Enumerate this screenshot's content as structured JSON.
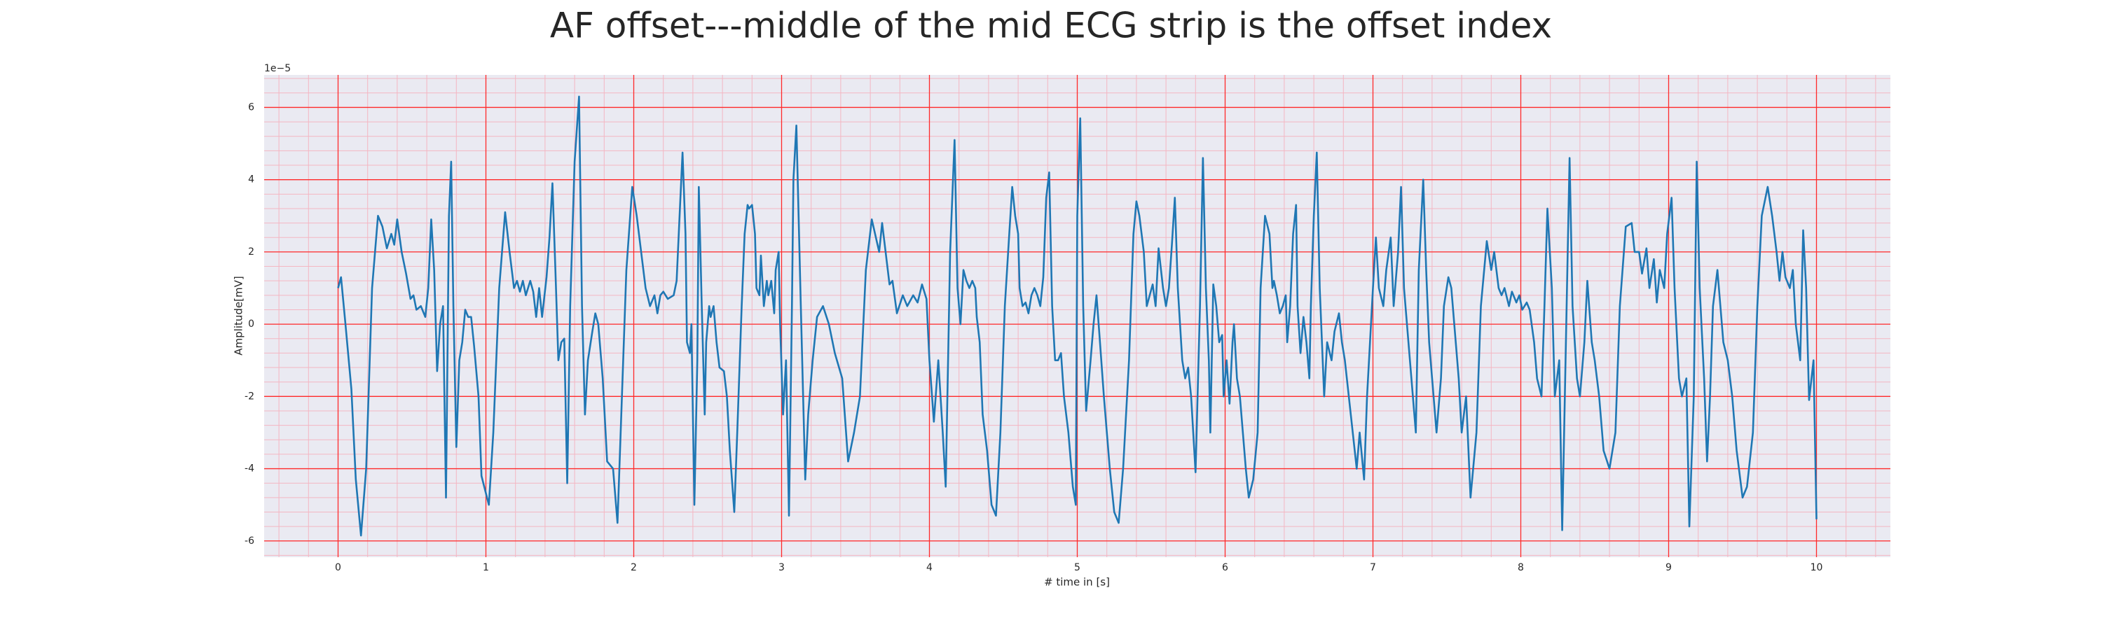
{
  "chart_data": {
    "type": "line",
    "title": "AF offset---middle of the mid ECG strip is the offset index",
    "x_label": "# time in [s]",
    "y_label": "Amplitude[mV]",
    "y_offset_label": "1e−5",
    "color": "#1f77b4",
    "grid": true,
    "minor_grid": {
      "x": 0.2,
      "y": 0.4
    },
    "xlim": [
      -0.5,
      10.5
    ],
    "ylim": [
      -6.45,
      6.9
    ],
    "xticks": [
      0,
      1,
      2,
      3,
      4,
      5,
      6,
      7,
      8,
      9,
      10
    ],
    "yticks": [
      -6,
      -4,
      -2,
      0,
      2,
      4,
      6
    ],
    "x": [
      0,
      0.02,
      0.05,
      0.09,
      0.12,
      0.155,
      0.19,
      0.23,
      0.27,
      0.3,
      0.33,
      0.36,
      0.38,
      0.4,
      0.43,
      0.46,
      0.49,
      0.51,
      0.53,
      0.56,
      0.59,
      0.61,
      0.63,
      0.65,
      0.67,
      0.69,
      0.71,
      0.73,
      0.75,
      0.765,
      0.78,
      0.8,
      0.82,
      0.84,
      0.86,
      0.88,
      0.9,
      0.92,
      0.95,
      0.97,
      1.02,
      1.05,
      1.09,
      1.13,
      1.16,
      1.19,
      1.21,
      1.23,
      1.25,
      1.27,
      1.3,
      1.32,
      1.34,
      1.36,
      1.38,
      1.41,
      1.43,
      1.45,
      1.47,
      1.49,
      1.51,
      1.53,
      1.55,
      1.57,
      1.6,
      1.63,
      1.65,
      1.67,
      1.69,
      1.72,
      1.74,
      1.76,
      1.79,
      1.82,
      1.86,
      1.89,
      1.92,
      1.95,
      1.99,
      2.02,
      2.05,
      2.08,
      2.11,
      2.14,
      2.16,
      2.18,
      2.2,
      2.23,
      2.27,
      2.29,
      2.31,
      2.33,
      2.35,
      2.36,
      2.38,
      2.39,
      2.41,
      2.43,
      2.44,
      2.46,
      2.48,
      2.49,
      2.51,
      2.52,
      2.54,
      2.56,
      2.58,
      2.61,
      2.63,
      2.65,
      2.68,
      2.7,
      2.73,
      2.75,
      2.77,
      2.78,
      2.8,
      2.82,
      2.83,
      2.85,
      2.86,
      2.88,
      2.9,
      2.91,
      2.93,
      2.95,
      2.96,
      2.98,
      2.99,
      3.01,
      3.03,
      3.05,
      3.07,
      3.08,
      3.1,
      3.13,
      3.16,
      3.18,
      3.21,
      3.24,
      3.28,
      3.32,
      3.36,
      3.41,
      3.45,
      3.49,
      3.53,
      3.57,
      3.61,
      3.66,
      3.68,
      3.73,
      3.75,
      3.78,
      3.82,
      3.85,
      3.89,
      3.92,
      3.95,
      3.98,
      4,
      4.03,
      4.06,
      4.09,
      4.11,
      4.14,
      4.17,
      4.19,
      4.21,
      4.23,
      4.25,
      4.27,
      4.29,
      4.31,
      4.32,
      4.34,
      4.36,
      4.39,
      4.42,
      4.45,
      4.48,
      4.51,
      4.54,
      4.56,
      4.58,
      4.6,
      4.61,
      4.63,
      4.65,
      4.67,
      4.69,
      4.71,
      4.73,
      4.75,
      4.77,
      4.79,
      4.81,
      4.83,
      4.85,
      4.87,
      4.89,
      4.91,
      4.94,
      4.97,
      4.99,
      5,
      5.02,
      5.04,
      5.06,
      5.09,
      5.11,
      5.13,
      5.15,
      5.18,
      5.22,
      5.25,
      5.28,
      5.31,
      5.35,
      5.38,
      5.4,
      5.42,
      5.45,
      5.47,
      5.49,
      5.51,
      5.53,
      5.55,
      5.58,
      5.6,
      5.62,
      5.64,
      5.66,
      5.68,
      5.71,
      5.73,
      5.75,
      5.77,
      5.8,
      5.83,
      5.85,
      5.87,
      5.89,
      5.9,
      5.92,
      5.94,
      5.96,
      5.98,
      5.99,
      6.01,
      6.03,
      6.05,
      6.06,
      6.08,
      6.1,
      6.12,
      6.14,
      6.16,
      6.19,
      6.22,
      6.24,
      6.27,
      6.3,
      6.32,
      6.33,
      6.35,
      6.37,
      6.39,
      6.41,
      6.42,
      6.44,
      6.46,
      6.48,
      6.49,
      6.51,
      6.53,
      6.55,
      6.57,
      6.58,
      6.6,
      6.62,
      6.64,
      6.67,
      6.69,
      6.72,
      6.74,
      6.77,
      6.79,
      6.81,
      6.85,
      6.89,
      6.91,
      6.94,
      6.96,
      7,
      7.02,
      7.04,
      7.07,
      7.09,
      7.12,
      7.14,
      7.17,
      7.19,
      7.21,
      7.24,
      7.26,
      7.29,
      7.31,
      7.34,
      7.36,
      7.38,
      7.41,
      7.43,
      7.46,
      7.48,
      7.51,
      7.53,
      7.55,
      7.58,
      7.6,
      7.63,
      7.66,
      7.7,
      7.73,
      7.77,
      7.8,
      7.82,
      7.85,
      7.87,
      7.89,
      7.92,
      7.94,
      7.97,
      7.99,
      8.01,
      8.04,
      8.06,
      8.09,
      8.11,
      8.14,
      8.16,
      8.18,
      8.21,
      8.23,
      8.26,
      8.28,
      8.31,
      8.33,
      8.35,
      8.38,
      8.4,
      8.43,
      8.45,
      8.48,
      8.5,
      8.53,
      8.56,
      8.6,
      8.64,
      8.67,
      8.71,
      8.75,
      8.77,
      8.8,
      8.82,
      8.85,
      8.87,
      8.9,
      8.92,
      8.94,
      8.97,
      8.99,
      9.02,
      9.04,
      9.07,
      9.09,
      9.12,
      9.14,
      9.17,
      9.19,
      9.21,
      9.24,
      9.26,
      9.28,
      9.3,
      9.33,
      9.35,
      9.37,
      9.4,
      9.43,
      9.46,
      9.5,
      9.53,
      9.57,
      9.6,
      9.63,
      9.67,
      9.7,
      9.73,
      9.75,
      9.77,
      9.79,
      9.82,
      9.84,
      9.86,
      9.89,
      9.91,
      9.93,
      9.95,
      9.98,
      10
    ],
    "values": [
      1.0,
      1.3,
      0.0,
      -1.8,
      -4.3,
      -5.85,
      -4.0,
      1.0,
      3.0,
      2.7,
      2.1,
      2.5,
      2.2,
      2.9,
      2.0,
      1.4,
      0.7,
      0.8,
      0.4,
      0.5,
      0.2,
      1.0,
      2.9,
      1.5,
      -1.3,
      0.0,
      0.5,
      -4.8,
      3.0,
      4.5,
      0.5,
      -3.4,
      -1.0,
      -0.5,
      0.4,
      0.2,
      0.2,
      -0.6,
      -2.0,
      -4.2,
      -5.0,
      -3.0,
      1.0,
      3.1,
      2.0,
      1.0,
      1.2,
      0.9,
      1.2,
      0.8,
      1.2,
      0.9,
      0.2,
      1.0,
      0.2,
      1.3,
      2.4,
      3.9,
      1.5,
      -1.0,
      -0.5,
      -0.4,
      -4.4,
      0.5,
      4.5,
      6.3,
      0.5,
      -2.5,
      -1.0,
      -0.2,
      0.3,
      0.0,
      -1.5,
      -3.8,
      -4.0,
      -5.5,
      -2.0,
      1.5,
      3.8,
      3.0,
      2.0,
      1.0,
      0.5,
      0.8,
      0.3,
      0.8,
      0.9,
      0.7,
      0.8,
      1.2,
      3.0,
      4.75,
      2.5,
      -0.5,
      -0.8,
      0.0,
      -5.0,
      -1.0,
      3.8,
      0.5,
      -2.5,
      -0.5,
      0.5,
      0.2,
      0.5,
      -0.5,
      -1.2,
      -1.3,
      -2.0,
      -3.5,
      -5.2,
      -3.0,
      0.5,
      2.5,
      3.3,
      3.2,
      3.3,
      2.5,
      1.0,
      0.8,
      1.9,
      0.5,
      1.2,
      0.8,
      1.2,
      0.3,
      1.5,
      2.0,
      0.0,
      -2.5,
      -1.0,
      -5.3,
      0.5,
      4.0,
      5.5,
      0.5,
      -4.3,
      -2.5,
      -1.0,
      0.2,
      0.5,
      0.0,
      -0.8,
      -1.5,
      -3.8,
      -3.0,
      -2.0,
      1.5,
      2.9,
      2.0,
      2.8,
      1.1,
      1.2,
      0.3,
      0.8,
      0.5,
      0.8,
      0.6,
      1.1,
      0.7,
      -1.0,
      -2.7,
      -1.0,
      -3.0,
      -4.5,
      2.0,
      5.1,
      1.0,
      0.0,
      1.5,
      1.2,
      1.0,
      1.2,
      1.0,
      0.2,
      -0.5,
      -2.5,
      -3.5,
      -5.0,
      -5.3,
      -3.0,
      0.5,
      2.5,
      3.8,
      3.0,
      2.5,
      1.0,
      0.5,
      0.6,
      0.3,
      0.8,
      1.0,
      0.8,
      0.5,
      1.3,
      3.5,
      4.2,
      0.5,
      -1.0,
      -1.0,
      -0.8,
      -2.0,
      -3.0,
      -4.5,
      -5.0,
      3.0,
      5.7,
      0.5,
      -2.4,
      -1.0,
      0.0,
      0.8,
      -0.3,
      -2.0,
      -4.0,
      -5.2,
      -5.5,
      -4.0,
      -1.0,
      2.5,
      3.4,
      3.0,
      2.0,
      0.5,
      0.8,
      1.1,
      0.5,
      2.1,
      1.0,
      0.5,
      1.0,
      2.2,
      3.5,
      1.0,
      -1.0,
      -1.5,
      -1.2,
      -2.0,
      -4.1,
      0.5,
      4.6,
      1.0,
      -1.0,
      -3.0,
      1.1,
      0.5,
      -0.5,
      -0.3,
      -2.0,
      -1.0,
      -2.2,
      -0.5,
      0.0,
      -1.5,
      -2.0,
      -3.0,
      -4.0,
      -4.8,
      -4.3,
      -3.0,
      1.0,
      3.0,
      2.5,
      1.0,
      1.2,
      0.8,
      0.3,
      0.5,
      0.8,
      -0.5,
      0.5,
      2.5,
      3.3,
      0.5,
      -0.8,
      0.2,
      -0.5,
      -1.5,
      0.5,
      3.0,
      4.75,
      1.0,
      -2.0,
      -0.5,
      -1.0,
      -0.2,
      0.3,
      -0.5,
      -1.0,
      -2.5,
      -4.0,
      -3.0,
      -4.3,
      -2.0,
      1.0,
      2.4,
      1.0,
      0.5,
      1.5,
      2.4,
      0.5,
      2.0,
      3.8,
      1.0,
      -0.5,
      -1.5,
      -3.0,
      1.5,
      4.0,
      1.5,
      -0.5,
      -2.0,
      -3.0,
      -1.5,
      0.5,
      1.3,
      1.0,
      0.0,
      -1.5,
      -3.0,
      -2.0,
      -4.8,
      -3.0,
      0.5,
      2.3,
      1.5,
      2.0,
      1.0,
      0.8,
      1.0,
      0.5,
      0.9,
      0.6,
      0.8,
      0.4,
      0.6,
      0.4,
      -0.5,
      -1.5,
      -2.0,
      0.5,
      3.2,
      1.0,
      -2.0,
      -1.0,
      -5.7,
      0.5,
      4.6,
      0.5,
      -1.5,
      -2.0,
      -0.5,
      1.2,
      -0.5,
      -1.0,
      -2.0,
      -3.5,
      -4.0,
      -3.0,
      0.5,
      2.7,
      2.8,
      2.0,
      2.0,
      1.4,
      2.1,
      1.0,
      1.8,
      0.6,
      1.5,
      1.0,
      2.5,
      3.5,
      1.0,
      -1.5,
      -2.0,
      -1.5,
      -5.6,
      -2.0,
      4.5,
      1.0,
      -1.5,
      -3.8,
      -2.0,
      0.5,
      1.5,
      0.5,
      -0.5,
      -1.0,
      -2.0,
      -3.5,
      -4.8,
      -4.5,
      -3.0,
      0.5,
      3.0,
      3.8,
      3.0,
      2.0,
      1.2,
      2.0,
      1.3,
      1.0,
      1.5,
      0.0,
      -1.0,
      2.6,
      1.0,
      -2.1,
      -1.0,
      -5.4
    ]
  }
}
